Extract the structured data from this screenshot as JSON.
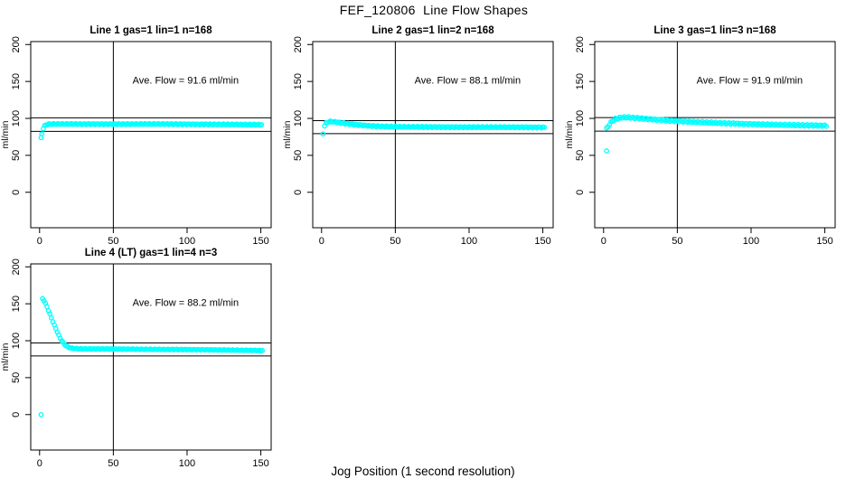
{
  "page": {
    "title": "FEF_120806  Line Flow Shapes",
    "xlabel": "Jog Position (1 second resolution)",
    "background": "#ffffff"
  },
  "style": {
    "point_color": "#00ffff",
    "line_color": "#000000",
    "text_color": "#000000"
  },
  "axes": {
    "ylabel": "ml/min",
    "x_ticks": [
      0,
      50,
      100,
      150
    ],
    "y_ticks": [
      0,
      50,
      100,
      150,
      200
    ],
    "xlim": [
      -6,
      157
    ],
    "ylim": [
      -48,
      204
    ],
    "vline_x": 50,
    "x_step": 1,
    "x_end": 151
  },
  "chart_data": [
    {
      "type": "scatter",
      "title": "Line 1 gas=1 lin=1 n=168",
      "annotation": "Ave. Flow =  91.6  ml/min",
      "ave_flow_ml_min": 91.6,
      "hlines": [
        100.8,
        82.4
      ],
      "outliers": [
        [
          1,
          74
        ]
      ],
      "points": [
        [
          1.5,
          79
        ],
        [
          2,
          84
        ],
        [
          3,
          89
        ],
        [
          4,
          91
        ],
        [
          5,
          91.8
        ],
        [
          8,
          92.4
        ],
        [
          20,
          92.4
        ],
        [
          50,
          92.2
        ],
        [
          80,
          92.4
        ],
        [
          110,
          92
        ],
        [
          130,
          91.8
        ],
        [
          151,
          91.4
        ]
      ],
      "spread": 0.7
    },
    {
      "type": "scatter",
      "title": "Line 2 gas=1 lin=2 n=168",
      "annotation": "Ave. Flow =  88.1  ml/min",
      "ave_flow_ml_min": 88.1,
      "hlines": [
        96.9,
        79.3
      ],
      "outliers": [
        [
          1,
          79
        ]
      ],
      "points": [
        [
          2,
          90
        ],
        [
          3,
          93.5
        ],
        [
          4,
          95
        ],
        [
          6,
          95.7
        ],
        [
          9,
          95.3
        ],
        [
          12,
          94.3
        ],
        [
          16,
          93.2
        ],
        [
          20,
          92.2
        ],
        [
          25,
          91.2
        ],
        [
          30,
          90.3
        ],
        [
          36,
          89.6
        ],
        [
          42,
          89.1
        ],
        [
          50,
          88.7
        ],
        [
          65,
          88.4
        ],
        [
          85,
          88.2
        ],
        [
          110,
          88.1
        ],
        [
          130,
          88.1
        ],
        [
          151,
          87.8
        ]
      ],
      "spread": 0.8
    },
    {
      "type": "scatter",
      "title": "Line 3 gas=1 lin=3 n=168",
      "annotation": "Ave. Flow =  91.9  ml/min",
      "ave_flow_ml_min": 91.9,
      "hlines": [
        101.1,
        82.7
      ],
      "outliers": [
        [
          2,
          56
        ]
      ],
      "points": [
        [
          2,
          86
        ],
        [
          3,
          89
        ],
        [
          4,
          92
        ],
        [
          5,
          94.5
        ],
        [
          6,
          96.5
        ],
        [
          8,
          99
        ],
        [
          10,
          100.3
        ],
        [
          13,
          101.2
        ],
        [
          16,
          101.4
        ],
        [
          20,
          100.8
        ],
        [
          25,
          100
        ],
        [
          30,
          99.2
        ],
        [
          38,
          98
        ],
        [
          46,
          96.8
        ],
        [
          55,
          95.8
        ],
        [
          65,
          94.8
        ],
        [
          75,
          94
        ],
        [
          85,
          93.3
        ],
        [
          95,
          92.6
        ],
        [
          105,
          92
        ],
        [
          115,
          91.5
        ],
        [
          125,
          91
        ],
        [
          135,
          90.7
        ],
        [
          151,
          90.2
        ]
      ],
      "spread": 1.1
    },
    {
      "type": "scatter",
      "title": "Line 4 (LT) gas=1 lin=4 n=3",
      "annotation": "Ave. Flow =  88.2  ml/min",
      "ave_flow_ml_min": 88.2,
      "hlines": [
        97.0,
        79.4
      ],
      "outliers": [
        [
          1,
          0
        ]
      ],
      "points": [
        [
          2,
          157
        ],
        [
          3,
          154.5
        ],
        [
          4,
          150.5
        ],
        [
          5,
          146
        ],
        [
          6,
          141
        ],
        [
          7,
          136
        ],
        [
          8,
          131
        ],
        [
          9,
          126
        ],
        [
          10,
          121
        ],
        [
          11,
          116.5
        ],
        [
          12,
          112
        ],
        [
          13,
          107.5
        ],
        [
          14,
          103.5
        ],
        [
          15,
          100
        ],
        [
          16,
          97.3
        ],
        [
          17,
          95
        ],
        [
          18,
          93.2
        ],
        [
          19,
          91.8
        ],
        [
          20,
          90.8
        ],
        [
          22,
          89.8
        ],
        [
          25,
          89.2
        ],
        [
          30,
          88.9
        ],
        [
          40,
          88.9
        ],
        [
          55,
          88.7
        ],
        [
          70,
          88.4
        ],
        [
          85,
          88.2
        ],
        [
          100,
          88
        ],
        [
          115,
          87.7
        ],
        [
          130,
          87.3
        ],
        [
          151,
          86.7
        ]
      ],
      "spread": 0.5
    }
  ]
}
